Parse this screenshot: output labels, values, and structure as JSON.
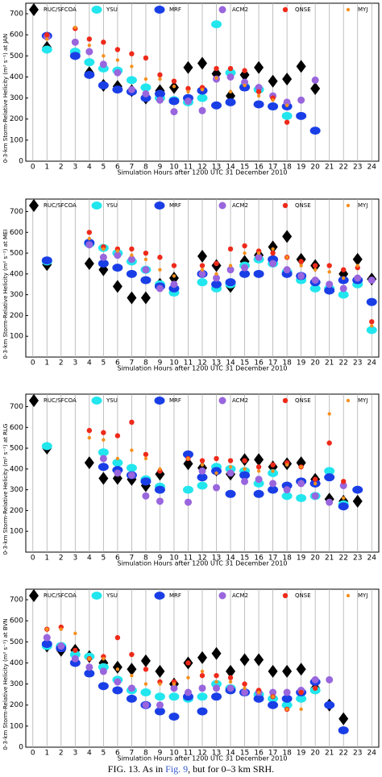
{
  "chart_data": [
    {
      "type": "scatter",
      "ylabel": "0-3-km Storm-Relative Helicity (m² s⁻¹) at JAN",
      "xlabel": "Simulation Hours after 1200 UTC 31 December 2010",
      "x": [
        0,
        1,
        2,
        3,
        4,
        5,
        6,
        7,
        8,
        9,
        10,
        11,
        12,
        13,
        14,
        15,
        16,
        17,
        18,
        19,
        20,
        21,
        22,
        23,
        24
      ],
      "xlim": [
        -0.5,
        24.5
      ],
      "xticks": [
        0,
        1,
        2,
        3,
        4,
        5,
        6,
        7,
        8,
        9,
        10,
        11,
        12,
        13,
        14,
        15,
        16,
        17,
        18,
        19,
        20,
        21,
        22,
        23,
        24
      ],
      "ylim": [
        0,
        750
      ],
      "yticks": [
        0,
        100,
        200,
        300,
        400,
        500,
        600,
        700
      ],
      "grid": true,
      "series": [
        {
          "name": "RUC/SFCOA",
          "color": "#000000",
          "marker": "diamond",
          "values": [
            null,
            540,
            null,
            510,
            420,
            360,
            355,
            335,
            300,
            335,
            350,
            445,
            465,
            415,
            310,
            410,
            445,
            380,
            390,
            450,
            345,
            null,
            null,
            null,
            null
          ]
        },
        {
          "name": "YSU",
          "color": "#22e6ee",
          "marker": "ellipse",
          "values": [
            null,
            530,
            null,
            520,
            470,
            440,
            430,
            385,
            350,
            300,
            290,
            280,
            300,
            650,
            420,
            355,
            340,
            260,
            215,
            null,
            null,
            null,
            null,
            null,
            null
          ]
        },
        {
          "name": "MRF",
          "color": "#1a3ee6",
          "marker": "ellipse",
          "values": [
            null,
            595,
            null,
            500,
            410,
            360,
            340,
            330,
            300,
            320,
            285,
            300,
            335,
            265,
            280,
            350,
            270,
            260,
            260,
            215,
            145,
            null,
            null,
            null,
            null
          ]
        },
        {
          "name": "ACM2",
          "color": "#9966dd",
          "marker": "circle",
          "values": [
            null,
            590,
            null,
            565,
            520,
            460,
            420,
            340,
            320,
            290,
            235,
            285,
            240,
            390,
            400,
            375,
            350,
            310,
            280,
            290,
            385,
            null,
            null,
            null,
            null
          ]
        },
        {
          "name": "QNSE",
          "color": "#ee2a1a",
          "marker": "dot",
          "values": [
            null,
            600,
            null,
            630,
            580,
            565,
            530,
            510,
            490,
            410,
            380,
            345,
            350,
            440,
            440,
            430,
            330,
            300,
            185,
            null,
            null,
            null,
            null,
            null,
            null
          ]
        },
        {
          "name": "MYJ",
          "color": "#f5901e",
          "marker": "small",
          "values": [
            null,
            580,
            null,
            635,
            550,
            500,
            480,
            450,
            390,
            390,
            355,
            330,
            340,
            395,
            330,
            360,
            310,
            290,
            265,
            null,
            null,
            null,
            null,
            null,
            null
          ]
        }
      ]
    },
    {
      "type": "scatter",
      "ylabel": "0-3-km Storm-Relative Helicity (m² s⁻¹) at MEI",
      "xlabel": "Simulation Hours after 1200 UTC 31 December 2010",
      "x": [
        0,
        1,
        2,
        3,
        4,
        5,
        6,
        7,
        8,
        9,
        10,
        11,
        12,
        13,
        14,
        15,
        16,
        17,
        18,
        19,
        20,
        21,
        22,
        23,
        24
      ],
      "xlim": [
        -0.5,
        24.5
      ],
      "xticks": [
        0,
        1,
        2,
        3,
        4,
        5,
        6,
        7,
        8,
        9,
        10,
        11,
        12,
        13,
        14,
        15,
        16,
        17,
        18,
        19,
        20,
        21,
        22,
        23,
        24
      ],
      "ylim": [
        0,
        760
      ],
      "yticks": [
        100,
        200,
        300,
        400,
        500,
        600,
        700
      ],
      "grid": true,
      "series": [
        {
          "name": "RUC/SFCOA",
          "color": "#000000",
          "marker": "diamond",
          "values": [
            null,
            445,
            null,
            null,
            450,
            420,
            340,
            285,
            285,
            350,
            380,
            null,
            485,
            440,
            340,
            460,
            490,
            530,
            580,
            470,
            440,
            330,
            400,
            470,
            375
          ]
        },
        {
          "name": "YSU",
          "color": "#22e6ee",
          "marker": "ellipse",
          "values": [
            null,
            460,
            null,
            null,
            545,
            525,
            500,
            460,
            420,
            350,
            310,
            null,
            360,
            330,
            350,
            440,
            470,
            450,
            410,
            370,
            330,
            330,
            300,
            350,
            130
          ]
        },
        {
          "name": "MRF",
          "color": "#1a3ee6",
          "marker": "ellipse",
          "values": [
            null,
            465,
            null,
            null,
            550,
            450,
            430,
            400,
            370,
            340,
            330,
            null,
            400,
            350,
            360,
            400,
            400,
            470,
            400,
            390,
            360,
            320,
            370,
            370,
            265
          ]
        },
        {
          "name": "ACM2",
          "color": "#9966dd",
          "marker": "circle",
          "values": [
            null,
            null,
            null,
            null,
            540,
            480,
            490,
            470,
            420,
            330,
            350,
            null,
            400,
            380,
            420,
            430,
            480,
            450,
            420,
            390,
            370,
            350,
            330,
            380,
            370
          ]
        },
        {
          "name": "QNSE",
          "color": "#ee2a1a",
          "marker": "dot",
          "values": [
            null,
            null,
            null,
            null,
            600,
            530,
            520,
            520,
            500,
            480,
            440,
            null,
            440,
            450,
            520,
            535,
            510,
            500,
            480,
            460,
            440,
            440,
            420,
            430,
            170
          ]
        },
        {
          "name": "MYJ",
          "color": "#f5901e",
          "marker": "small",
          "values": [
            null,
            null,
            null,
            null,
            570,
            520,
            510,
            490,
            470,
            420,
            390,
            null,
            420,
            400,
            440,
            500,
            500,
            520,
            480,
            440,
            420,
            410,
            380,
            440,
            150
          ]
        }
      ]
    },
    {
      "type": "scatter",
      "ylabel": "0-3-km Storm-Relative Helicity (m² s⁻¹) at RLG",
      "xlabel": "Simulation Hours after 1200 UTC 31 December 2010",
      "x": [
        0,
        1,
        2,
        3,
        4,
        5,
        6,
        7,
        8,
        9,
        10,
        11,
        12,
        13,
        14,
        15,
        16,
        17,
        18,
        19,
        20,
        21,
        22,
        23,
        24
      ],
      "xlim": [
        -0.5,
        24.5
      ],
      "xticks": [
        0,
        1,
        2,
        3,
        4,
        5,
        6,
        7,
        8,
        9,
        10,
        11,
        12,
        13,
        14,
        15,
        16,
        17,
        18,
        19,
        20,
        21,
        22,
        23,
        24
      ],
      "ylim": [
        0,
        760
      ],
      "yticks": [
        100,
        200,
        300,
        400,
        500,
        600,
        700
      ],
      "grid": true,
      "series": [
        {
          "name": "RUC/SFCOA",
          "color": "#000000",
          "marker": "diamond",
          "values": [
            null,
            500,
            null,
            null,
            430,
            355,
            355,
            350,
            320,
            375,
            null,
            425,
            405,
            395,
            375,
            445,
            445,
            410,
            425,
            430,
            350,
            255,
            245,
            245,
            null
          ]
        },
        {
          "name": "YSU",
          "color": "#22e6ee",
          "marker": "ellipse",
          "values": [
            null,
            510,
            null,
            null,
            null,
            480,
            430,
            405,
            350,
            315,
            null,
            300,
            320,
            410,
            400,
            390,
            330,
            380,
            270,
            260,
            270,
            390,
            230,
            null,
            null
          ]
        },
        {
          "name": "MRF",
          "color": "#1a3ee6",
          "marker": "ellipse",
          "values": [
            null,
            null,
            null,
            null,
            null,
            410,
            395,
            370,
            340,
            300,
            null,
            470,
            360,
            390,
            280,
            370,
            280,
            300,
            320,
            340,
            330,
            360,
            220,
            300,
            null
          ]
        },
        {
          "name": "ACM2",
          "color": "#9966dd",
          "marker": "circle",
          "values": [
            null,
            null,
            null,
            null,
            null,
            450,
            380,
            370,
            270,
            245,
            null,
            240,
            390,
            310,
            380,
            340,
            350,
            330,
            300,
            330,
            270,
            240,
            320,
            null,
            null
          ]
        },
        {
          "name": "QNSE",
          "color": "#ee2a1a",
          "marker": "dot",
          "values": [
            null,
            null,
            null,
            null,
            585,
            575,
            560,
            625,
            470,
            390,
            null,
            450,
            440,
            450,
            440,
            440,
            410,
            420,
            430,
            410,
            350,
            525,
            340,
            null,
            null
          ]
        },
        {
          "name": "MYJ",
          "color": "#f5901e",
          "marker": "small",
          "values": [
            null,
            null,
            null,
            null,
            550,
            540,
            450,
            490,
            450,
            400,
            null,
            450,
            420,
            380,
            410,
            400,
            390,
            390,
            420,
            410,
            330,
            665,
            260,
            null,
            null
          ]
        }
      ]
    },
    {
      "type": "scatter",
      "ylabel": "0-3-km Storm-Relative Helicity (m² s⁻¹) at BVN",
      "xlabel": "Simulation Hours after 1200 UTC 31 December 2010",
      "x": [
        0,
        1,
        2,
        3,
        4,
        5,
        6,
        7,
        8,
        9,
        10,
        11,
        12,
        13,
        14,
        15,
        16,
        17,
        18,
        19,
        20,
        21,
        22,
        23,
        24
      ],
      "xlim": [
        -0.5,
        24.5
      ],
      "xticks": [
        0,
        1,
        2,
        3,
        4,
        5,
        6,
        7,
        8,
        9,
        10,
        11,
        12,
        13,
        14,
        15,
        16,
        17,
        18,
        19,
        20,
        21,
        22,
        23,
        24
      ],
      "ylim": [
        0,
        750
      ],
      "yticks": [
        0,
        100,
        200,
        300,
        400,
        500,
        600,
        700
      ],
      "grid": true,
      "series": [
        {
          "name": "RUC/SFCOA",
          "color": "#000000",
          "marker": "diamond",
          "values": [
            null,
            480,
            460,
            460,
            430,
            400,
            380,
            370,
            410,
            360,
            300,
            400,
            425,
            445,
            360,
            415,
            415,
            360,
            360,
            370,
            280,
            200,
            135,
            null,
            null
          ]
        },
        {
          "name": "YSU",
          "color": "#22e6ee",
          "marker": "ellipse",
          "values": [
            null,
            480,
            480,
            440,
            430,
            380,
            320,
            270,
            260,
            240,
            240,
            230,
            240,
            300,
            280,
            260,
            250,
            230,
            200,
            230,
            270,
            null,
            null,
            null,
            null
          ]
        },
        {
          "name": "MRF",
          "color": "#1a3ee6",
          "marker": "ellipse",
          "values": [
            null,
            490,
            470,
            400,
            350,
            290,
            270,
            230,
            200,
            170,
            145,
            240,
            170,
            240,
            270,
            260,
            230,
            200,
            230,
            260,
            310,
            200,
            80,
            null,
            null
          ]
        },
        {
          "name": "ACM2",
          "color": "#9966dd",
          "marker": "circle",
          "values": [
            null,
            520,
            480,
            420,
            380,
            360,
            310,
            280,
            200,
            200,
            280,
            260,
            280,
            280,
            280,
            260,
            260,
            260,
            260,
            270,
            320,
            320,
            null,
            null,
            null
          ]
        },
        {
          "name": "QNSE",
          "color": "#ee2a1a",
          "marker": "dot",
          "values": [
            null,
            560,
            570,
            460,
            420,
            430,
            520,
            440,
            370,
            310,
            310,
            400,
            340,
            340,
            330,
            300,
            270,
            240,
            180,
            260,
            280,
            null,
            null,
            null,
            null
          ]
        },
        {
          "name": "MYJ",
          "color": "#f5901e",
          "marker": "small",
          "values": [
            null,
            560,
            560,
            540,
            420,
            420,
            370,
            340,
            300,
            300,
            300,
            330,
            360,
            310,
            310,
            280,
            260,
            240,
            180,
            180,
            null,
            null,
            null,
            null,
            null
          ]
        }
      ]
    }
  ],
  "caption": {
    "label": "FIG. 13.",
    "before": "As in",
    "link": "Fig. 9",
    "after": ", but for 0–3 km SRH."
  }
}
